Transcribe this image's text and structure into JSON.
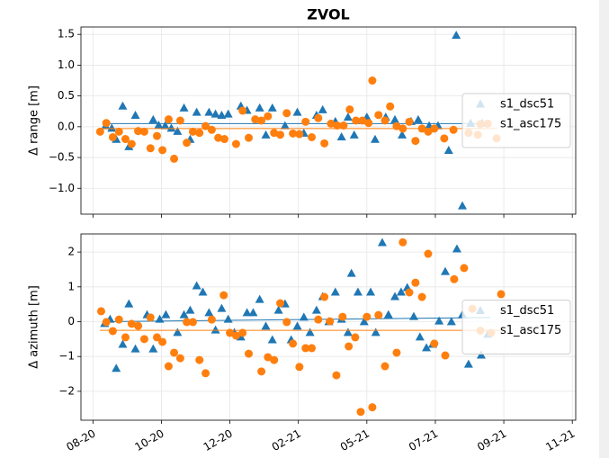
{
  "chart_data": [
    {
      "type": "scatter",
      "title": "ZVOL",
      "y_label": "Δ range [m]",
      "legend": "center right",
      "grid": true,
      "xlim": [
        -0.35,
        14.1
      ],
      "ylim": [
        -1.42,
        1.62
      ],
      "yticks": [
        {
          "value": -1.0,
          "label": "−1.0"
        },
        {
          "value": -0.5,
          "label": "−0.5"
        },
        {
          "value": 0.0,
          "label": "0.0"
        },
        {
          "value": 0.5,
          "label": "0.5"
        },
        {
          "value": 1.0,
          "label": "1.0"
        },
        {
          "value": 1.5,
          "label": "1.5"
        }
      ],
      "series": [
        {
          "name": "s1_dsc51",
          "color": "#1f77b4",
          "marker": "triangle",
          "x": [
            0.37,
            0.55,
            0.68,
            0.87,
            1.05,
            1.24,
            1.76,
            1.92,
            2.11,
            2.29,
            2.47,
            2.66,
            2.84,
            3.03,
            3.39,
            3.58,
            3.76,
            3.95,
            4.32,
            4.5,
            4.87,
            5.05,
            5.24,
            5.61,
            5.97,
            6.16,
            6.53,
            6.71,
            7.08,
            7.26,
            7.45,
            7.63,
            8.0,
            8.24,
            8.55,
            8.82,
            9.03,
            9.29,
            9.5,
            9.82,
            10.08,
            10.39,
            10.61,
            10.79,
            11.03,
            11.37
          ],
          "values": [
            0.01,
            -0.03,
            -0.21,
            0.33,
            -0.33,
            0.18,
            0.11,
            0.02,
            0.01,
            -0.03,
            -0.08,
            0.3,
            -0.21,
            0.23,
            0.23,
            0.2,
            0.18,
            0.2,
            0.33,
            0.26,
            0.3,
            -0.14,
            0.3,
            0.01,
            0.23,
            -0.11,
            0.18,
            0.27,
            0.08,
            -0.17,
            0.15,
            -0.14,
            0.15,
            -0.21,
            0.15,
            0.11,
            -0.14,
            0.08,
            0.11,
            0.01,
            0.01,
            -0.39,
            1.48,
            -1.29,
            0.05,
            0.05
          ],
          "fit_x": [
            0.3,
            11.4
          ],
          "fit_values": [
            0.05,
            0.05
          ]
        },
        {
          "name": "s1_asc175",
          "color": "#ff7f0e",
          "marker": "circle",
          "x": [
            0.21,
            0.39,
            0.58,
            0.76,
            0.95,
            1.13,
            1.32,
            1.5,
            1.68,
            1.87,
            2.03,
            2.21,
            2.37,
            2.55,
            2.74,
            2.92,
            3.11,
            3.29,
            3.47,
            3.66,
            3.84,
            4.18,
            4.37,
            4.55,
            4.74,
            4.92,
            5.11,
            5.29,
            5.47,
            5.66,
            5.84,
            6.03,
            6.21,
            6.39,
            6.58,
            6.76,
            6.95,
            7.13,
            7.32,
            7.5,
            7.68,
            7.87,
            8.05,
            8.16,
            8.34,
            8.53,
            8.68,
            8.87,
            9.05,
            9.24,
            9.42,
            9.61,
            9.79,
            9.97,
            10.26,
            10.53,
            10.97,
            11.24,
            11.53,
            11.79
          ],
          "values": [
            -0.08,
            0.06,
            -0.17,
            -0.08,
            -0.2,
            -0.28,
            -0.07,
            -0.08,
            -0.35,
            -0.15,
            -0.38,
            0.12,
            -0.52,
            0.1,
            -0.26,
            -0.08,
            -0.1,
            0.01,
            -0.05,
            -0.18,
            -0.2,
            -0.28,
            0.26,
            -0.18,
            0.12,
            0.1,
            0.17,
            -0.1,
            -0.13,
            0.22,
            -0.11,
            -0.12,
            0.08,
            -0.17,
            0.14,
            -0.27,
            0.05,
            0.02,
            0.02,
            0.28,
            0.1,
            0.1,
            0.06,
            0.75,
            0.19,
            0.1,
            0.33,
            0.01,
            -0.03,
            0.08,
            -0.23,
            -0.03,
            -0.08,
            -0.03,
            -0.19,
            -0.05,
            -0.1,
            -0.13,
            0.05,
            -0.19
          ],
          "fit_x": [
            0.2,
            11.8
          ],
          "fit_values": [
            -0.03,
            -0.03
          ]
        }
      ]
    },
    {
      "type": "scatter",
      "y_label": "Δ azimuth [m]",
      "legend": "center right",
      "grid": true,
      "xlim": [
        -0.35,
        14.1
      ],
      "ylim": [
        -2.83,
        2.52
      ],
      "xticks": [
        {
          "value": 0,
          "label": "08-20"
        },
        {
          "value": 2,
          "label": "10-20"
        },
        {
          "value": 4,
          "label": "12-20"
        },
        {
          "value": 6,
          "label": "02-21"
        },
        {
          "value": 8,
          "label": "05-21"
        },
        {
          "value": 10,
          "label": "07-21"
        },
        {
          "value": 12,
          "label": "09-21"
        },
        {
          "value": 14,
          "label": "11-21"
        }
      ],
      "yticks": [
        {
          "value": -2,
          "label": "−2"
        },
        {
          "value": -1,
          "label": "−1"
        },
        0,
        1,
        2
      ],
      "series": [
        {
          "name": "s1_dsc51",
          "color": "#1f77b4",
          "marker": "triangle",
          "x": [
            0.34,
            0.5,
            0.68,
            0.87,
            1.05,
            1.24,
            1.58,
            1.76,
            1.95,
            2.13,
            2.47,
            2.66,
            2.84,
            3.03,
            3.21,
            3.39,
            3.58,
            3.76,
            3.95,
            4.13,
            4.32,
            4.5,
            4.68,
            4.87,
            5.05,
            5.24,
            5.42,
            5.61,
            5.79,
            5.97,
            6.16,
            6.34,
            6.53,
            6.71,
            6.89,
            7.08,
            7.26,
            7.45,
            7.55,
            7.74,
            7.92,
            8.11,
            8.26,
            8.45,
            8.63,
            8.82,
            9.0,
            9.18,
            9.37,
            9.55,
            9.74,
            9.92,
            10.11,
            10.29,
            10.47,
            10.63,
            10.79,
            10.97,
            11.34,
            11.53
          ],
          "values": [
            -0.06,
            0.06,
            -1.35,
            -0.66,
            0.5,
            -0.79,
            0.19,
            -0.79,
            0.06,
            0.19,
            -0.32,
            0.19,
            0.32,
            1.02,
            0.84,
            0.25,
            -0.25,
            0.37,
            0.06,
            -0.32,
            -0.45,
            0.25,
            0.25,
            0.63,
            -0.14,
            -0.53,
            0.32,
            0.5,
            -0.53,
            -0.14,
            0.12,
            -0.32,
            0.32,
            0.71,
            -0.01,
            0.84,
            0.06,
            -0.32,
            1.38,
            0.84,
            -0.01,
            0.84,
            -0.32,
            2.26,
            0.19,
            0.71,
            0.84,
            0.97,
            0.14,
            -0.45,
            -0.76,
            -0.66,
            0.01,
            1.43,
            -0.01,
            2.08,
            0.19,
            -1.23,
            -0.97,
            -0.37
          ],
          "fit_x": [
            0.3,
            11.6
          ],
          "fit_values": [
            0.0,
            0.12
          ]
        },
        {
          "name": "s1_asc175",
          "color": "#ff7f0e",
          "marker": "circle",
          "x": [
            0.24,
            0.39,
            0.58,
            0.76,
            0.95,
            1.13,
            1.32,
            1.5,
            1.68,
            1.87,
            2.03,
            2.21,
            2.37,
            2.55,
            2.74,
            2.92,
            3.11,
            3.29,
            3.47,
            3.82,
            4.0,
            4.18,
            4.37,
            4.55,
            4.92,
            5.11,
            5.29,
            5.47,
            5.66,
            5.84,
            6.03,
            6.21,
            6.39,
            6.58,
            6.76,
            6.92,
            7.11,
            7.29,
            7.47,
            7.66,
            7.82,
            8.0,
            8.16,
            8.34,
            8.53,
            8.87,
            9.05,
            9.24,
            9.42,
            9.61,
            9.79,
            9.97,
            10.29,
            10.55,
            10.84,
            11.08,
            11.63,
            11.92
          ],
          "values": [
            0.3,
            -0.01,
            -0.27,
            0.06,
            -0.45,
            -0.06,
            -0.12,
            -0.5,
            0.12,
            -0.45,
            -0.58,
            -1.28,
            -0.89,
            -1.05,
            -0.01,
            -0.01,
            -1.1,
            -1.48,
            0.06,
            0.76,
            -0.32,
            -0.4,
            -0.32,
            -0.92,
            -1.43,
            -1.02,
            -1.1,
            0.53,
            -0.01,
            -0.63,
            -1.3,
            -0.76,
            -0.76,
            0.06,
            0.71,
            0.01,
            -1.54,
            0.14,
            -0.71,
            -0.45,
            -2.59,
            0.14,
            -2.46,
            0.19,
            -1.28,
            -0.89,
            2.28,
            0.84,
            1.12,
            0.71,
            1.95,
            -0.63,
            -0.97,
            1.22,
            1.54,
            0.37,
            -0.32,
            0.79
          ],
          "fit_x": [
            0.2,
            11.9
          ],
          "fit_values": [
            -0.25,
            -0.25
          ]
        }
      ]
    }
  ]
}
